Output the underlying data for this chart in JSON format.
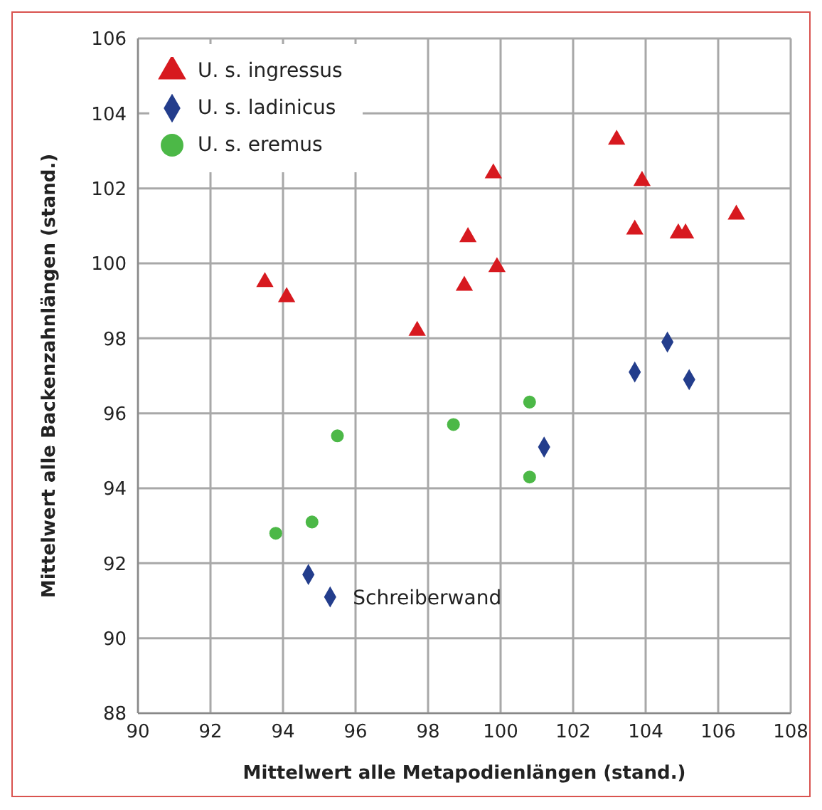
{
  "chart_data": {
    "type": "scatter",
    "xlabel": "Mittelwert alle Metapodienlängen (stand.)",
    "ylabel": "Mittelwert alle Backenzahnlängen (stand.)",
    "xlim": [
      90,
      108
    ],
    "xticks": [
      90,
      92,
      94,
      96,
      98,
      100,
      102,
      104,
      106,
      108
    ],
    "ylim": [
      88,
      106
    ],
    "yticks": [
      88,
      90,
      92,
      94,
      96,
      98,
      100,
      102,
      104,
      106
    ],
    "grid": true,
    "legend": "top left",
    "annotations": [
      {
        "text": "Schreiberwand",
        "x": 95.3,
        "y": 91.1
      }
    ],
    "series": [
      {
        "name": "U. s. ingressus",
        "color": "#d7191f",
        "marker": "triangle",
        "x": [
          93.5,
          94.1,
          97.7,
          99.0,
          99.1,
          99.8,
          99.9,
          103.2,
          103.9,
          103.7,
          104.9,
          105.1,
          106.5
        ],
        "values": [
          99.5,
          99.1,
          98.2,
          99.4,
          100.7,
          102.4,
          99.9,
          103.3,
          102.2,
          100.9,
          100.8,
          100.8,
          101.3
        ]
      },
      {
        "name": "U. s. ladinicus",
        "color": "#233d8c",
        "marker": "diamond",
        "x": [
          94.7,
          95.3,
          101.2,
          104.6,
          103.7,
          105.2
        ],
        "values": [
          91.7,
          91.1,
          95.1,
          97.9,
          97.1,
          96.9
        ]
      },
      {
        "name": "U. s. eremus",
        "color": "#4cb847",
        "marker": "circle",
        "x": [
          93.8,
          94.8,
          95.5,
          98.7,
          100.8,
          100.8
        ],
        "values": [
          92.8,
          93.1,
          95.4,
          95.7,
          96.3,
          94.3
        ]
      }
    ]
  }
}
